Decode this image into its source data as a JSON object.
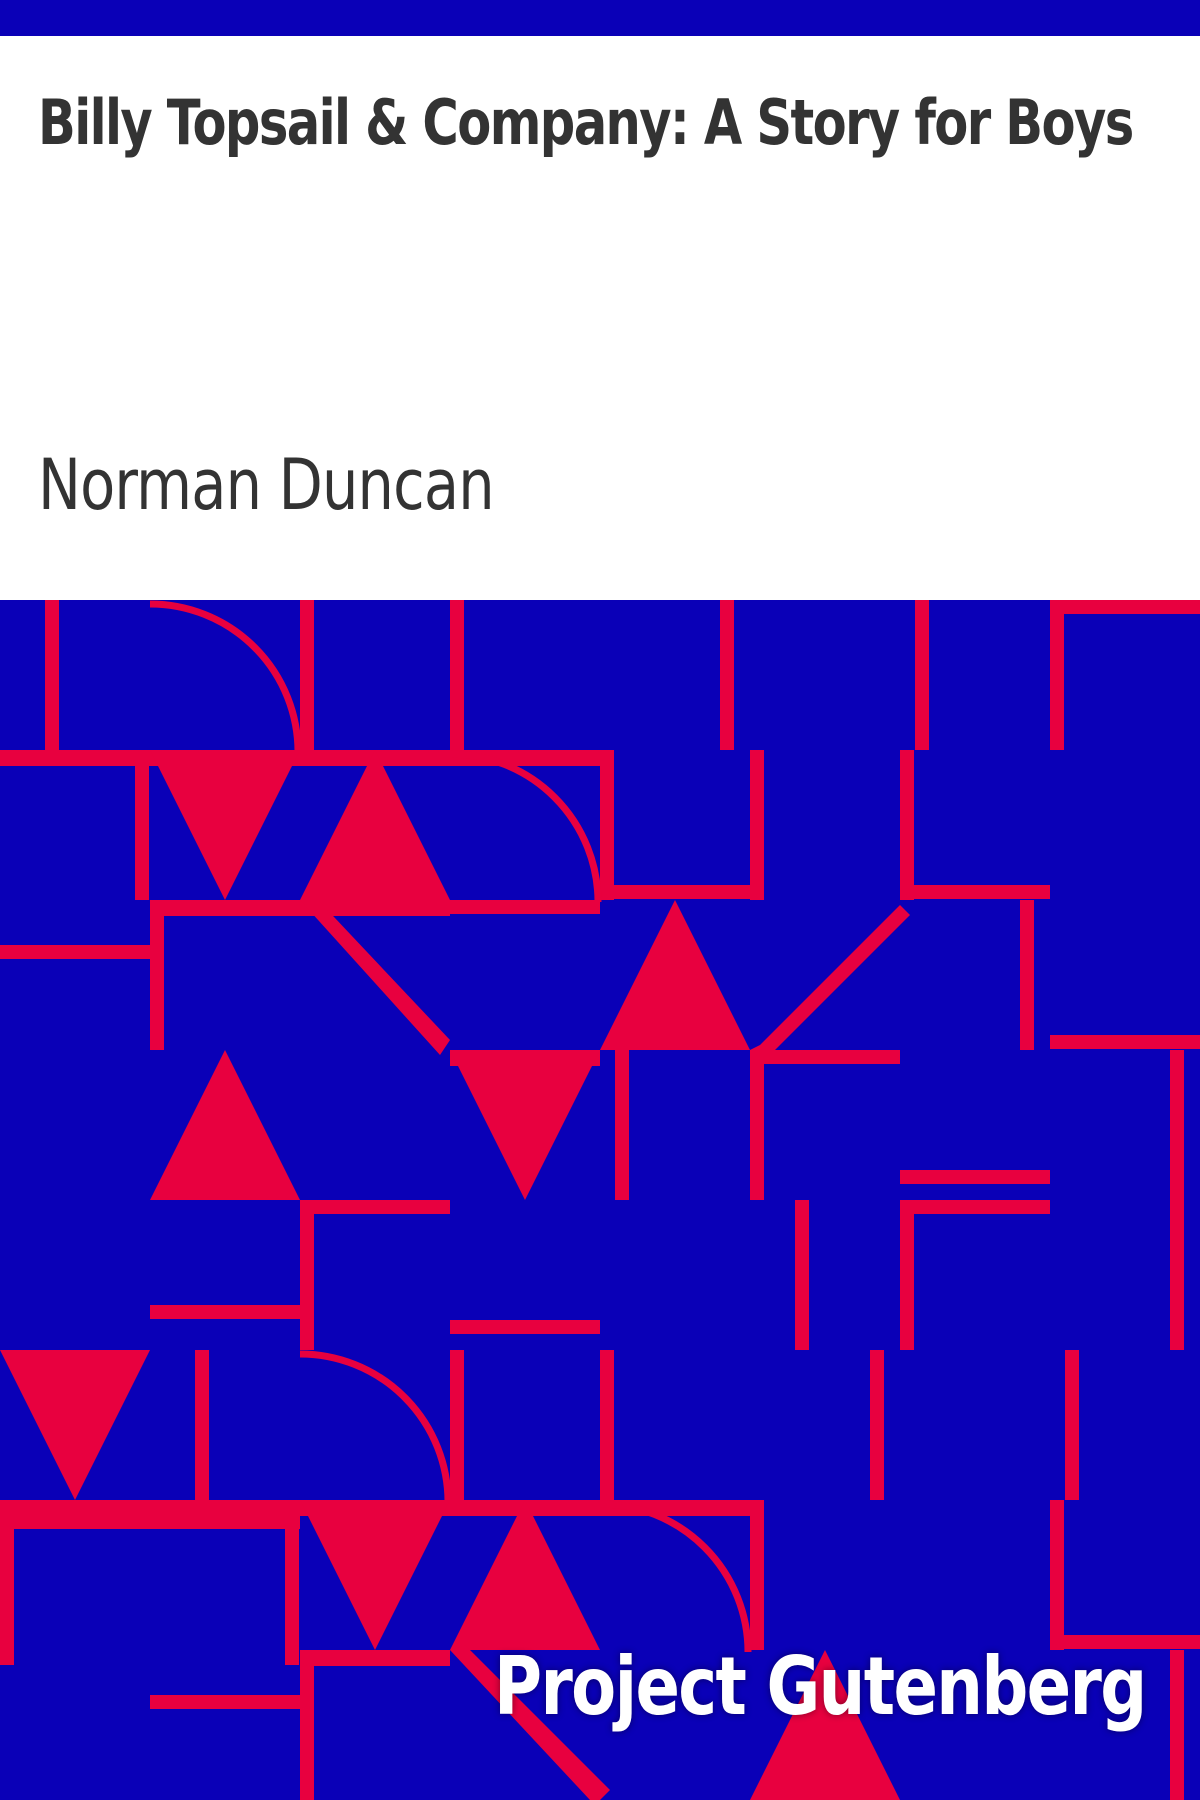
{
  "cover": {
    "title": "Billy Topsail & Company: A Story for Boys",
    "author": "Norman Duncan",
    "publisher": "Project Gutenberg"
  },
  "colors": {
    "background_top": "#ffffff",
    "pattern_blue": "#0a00b7",
    "pattern_red": "#e8003f",
    "text_dark": "#333333",
    "text_light": "#ffffff"
  }
}
